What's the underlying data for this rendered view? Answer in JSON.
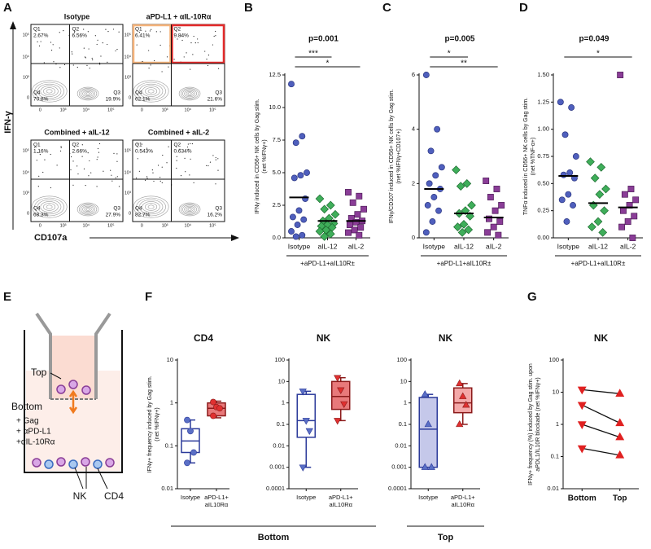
{
  "panel_labels": [
    "A",
    "B",
    "C",
    "D",
    "E",
    "F",
    "G"
  ],
  "flow_cytometry": {
    "y_label": "IFN-γ",
    "x_label": "CD107a",
    "ticks": [
      "0",
      "10³",
      "10⁴",
      "10⁵"
    ],
    "plots": [
      {
        "title": "Isotype",
        "quadrants": [
          {
            "name": "Q1",
            "percent": "2.67%"
          },
          {
            "name": "Q2",
            "percent": "6.56%"
          },
          {
            "name": "Q3",
            "percent": "19.9%"
          },
          {
            "name": "Q4",
            "percent": "70.8%"
          }
        ]
      },
      {
        "title": "aPD-L1 + αIL-10Rα",
        "quadrants": [
          {
            "name": "Q1",
            "percent": "6.41%"
          },
          {
            "name": "Q2",
            "percent": "9.84%"
          },
          {
            "name": "Q3",
            "percent": "21.6%"
          },
          {
            "name": "Q4",
            "percent": "62.1%"
          }
        ]
      },
      {
        "title": "Combined + aIL-12",
        "quadrants": [
          {
            "name": "Q1",
            "percent": "1.16%"
          },
          {
            "name": "Q2",
            "percent": "2.66%"
          },
          {
            "name": "Q3",
            "percent": "27.9%"
          },
          {
            "name": "Q4",
            "percent": "68.3%"
          }
        ]
      },
      {
        "title": "Combined + aIL-2",
        "quadrants": [
          {
            "name": "Q1",
            "percent": "0.543%"
          },
          {
            "name": "Q2",
            "percent": "0.634%"
          },
          {
            "name": "Q3",
            "percent": "16.2%"
          },
          {
            "name": "Q4",
            "percent": "82.7%"
          }
        ]
      }
    ]
  },
  "transwell": {
    "top": "Top",
    "bottom": "Bottom",
    "treatments": [
      "+ Gag",
      "+ αPD-L1",
      "+αIL-10Rα"
    ],
    "cells": [
      "NK",
      "CD4"
    ]
  },
  "figure_f": {
    "groups": [
      "Bottom",
      "Top"
    ]
  },
  "chart_data": [
    {
      "type": "strip",
      "y_label": [
        "IFNγ induced in CD56+ NK cells by Gag stim.",
        "(net %IFNγ+)"
      ],
      "categories": [
        "Isotype",
        "aIL-12",
        "aIL-2"
      ],
      "series": [
        {
          "color": "#4f5fbd",
          "edge_color": "#2a3580",
          "marker": "circle",
          "values": [
            11.8,
            7.8,
            7.3,
            5.0,
            4.8,
            4.6,
            3.0,
            2.1,
            1.6,
            1.4,
            1.0,
            0.5,
            0.2,
            0.1
          ],
          "median": 3.1
        },
        {
          "color": "#3fae5a",
          "edge_color": "#1d6b30",
          "marker": "diamond",
          "values": [
            3.0,
            2.5,
            2.2,
            1.8,
            1.5,
            1.3,
            1.1,
            1.0,
            0.9,
            0.8,
            0.6,
            0.5,
            0.3,
            0.1
          ],
          "median": 1.3
        },
        {
          "color": "#8a3d97",
          "edge_color": "#4d1a57",
          "marker": "square",
          "values": [
            3.5,
            3.2,
            2.7,
            2.2,
            1.8,
            1.5,
            1.3,
            1.2,
            1.0,
            0.8,
            0.6,
            0.4,
            0.2
          ],
          "median": 1.3
        }
      ],
      "ylim": [
        0,
        12.5
      ],
      "yticks": [
        {
          "value": 0,
          "label": "0.0"
        },
        {
          "value": 2.5,
          "label": "2.5"
        },
        {
          "value": 5,
          "label": "5.0"
        },
        {
          "value": 7.5,
          "label": "7.5"
        },
        {
          "value": 10,
          "label": "10.0"
        },
        {
          "value": 12.5,
          "label": "12.5"
        }
      ],
      "p_value": "p=0.001",
      "brackets": [
        {
          "label": "***",
          "categories": [
            "Isotype",
            "aIL-12"
          ]
        },
        {
          "label": "*",
          "categories": [
            "Isotype",
            "aIL-2"
          ]
        }
      ],
      "group_label": "+aPD-L1+aIL10R±"
    },
    {
      "type": "strip",
      "y_label": [
        "IFNγ/CD107 induced in CD56+ NK cells by Gag stim.",
        "(net %IFNγ+CD107+)"
      ],
      "categories": [
        "Isotype",
        "aIL-12",
        "aIL-2"
      ],
      "series": [
        {
          "color": "#4f5fbd",
          "edge_color": "#2a3580",
          "marker": "circle",
          "values": [
            6.0,
            4.0,
            3.2,
            2.6,
            2.3,
            2.0,
            1.8,
            1.5,
            1.2,
            1.0,
            0.6,
            0.2
          ],
          "median": 1.8
        },
        {
          "color": "#3fae5a",
          "edge_color": "#1d6b30",
          "marker": "diamond",
          "values": [
            2.5,
            2.0,
            1.9,
            1.2,
            1.0,
            0.9,
            0.8,
            0.5,
            0.4,
            0.3,
            0.2
          ],
          "median": 0.9
        },
        {
          "color": "#8a3d97",
          "edge_color": "#4d1a57",
          "marker": "square",
          "values": [
            2.1,
            1.8,
            1.5,
            1.2,
            1.0,
            0.7,
            0.6,
            0.4,
            0.2,
            0.1
          ],
          "median": 0.75
        }
      ],
      "ylim": [
        0,
        6
      ],
      "yticks": [
        0,
        2,
        4,
        6
      ],
      "p_value": "p=0.005",
      "brackets": [
        {
          "label": "*",
          "categories": [
            "Isotype",
            "aIL-12"
          ]
        },
        {
          "label": "**",
          "categories": [
            "Isotype",
            "aIL-2"
          ]
        }
      ],
      "group_label": "+aPD-L1+aIL10R±"
    },
    {
      "type": "strip",
      "y_label": [
        "TNFα induced in CD56+ NK cells by Gag stim.",
        "(net %TNF-α+)"
      ],
      "categories": [
        "Isotype",
        "aIL-12",
        "aIL-2"
      ],
      "series": [
        {
          "color": "#4f5fbd",
          "edge_color": "#2a3580",
          "marker": "circle",
          "values": [
            1.25,
            1.2,
            0.95,
            0.75,
            0.6,
            0.58,
            0.55,
            0.4,
            0.35,
            0.3,
            0.15
          ],
          "median": 0.57
        },
        {
          "color": "#3fae5a",
          "edge_color": "#1d6b30",
          "marker": "diamond",
          "values": [
            0.7,
            0.65,
            0.55,
            0.45,
            0.4,
            0.3,
            0.25,
            0.15,
            0.1,
            0.05
          ],
          "median": 0.32
        },
        {
          "color": "#8a3d97",
          "edge_color": "#4d1a57",
          "marker": "square",
          "values": [
            1.5,
            0.45,
            0.4,
            0.35,
            0.3,
            0.25,
            0.2,
            0.15,
            0.1,
            0.0
          ],
          "median": 0.28
        }
      ],
      "ylim": [
        0,
        1.5
      ],
      "yticks": [
        {
          "value": 0,
          "label": "0.00"
        },
        {
          "value": 0.25,
          "label": "0.25"
        },
        {
          "value": 0.5,
          "label": "0.50"
        },
        {
          "value": 0.75,
          "label": "0.75"
        },
        {
          "value": 1,
          "label": "1.00"
        },
        {
          "value": 1.25,
          "label": "1.25"
        },
        {
          "value": 1.5,
          "label": "1.50"
        }
      ],
      "p_value": "p=0.049",
      "brackets": [
        {
          "label": "*",
          "categories": [
            "Isotype",
            "aIL-2"
          ]
        }
      ],
      "group_label": "+aPD-L1+aIL10R±"
    },
    {
      "type": "box",
      "title": "CD4",
      "y_label": [
        "IFNγ+ frequency induced by Gag stim.",
        "(net %IFNγ+)"
      ],
      "log_scale": true,
      "ylim": [
        0.01,
        10
      ],
      "yticks": [
        0.01,
        0.1,
        1,
        10
      ],
      "categories": [
        [
          "Isotype"
        ],
        [
          "aPD-L1+",
          "aIL10Rα"
        ]
      ],
      "series": [
        {
          "color": "#2b3a9a",
          "fill": "#ffffff",
          "point_color": "#5a6fc6",
          "marker": "circle",
          "min": 0.04,
          "q1": 0.07,
          "median": 0.13,
          "q3": 0.25,
          "max": 0.4,
          "points": [
            0.4,
            0.22,
            0.07,
            0.04
          ]
        },
        {
          "color": "#8b1a1a",
          "fill": "#e8797a",
          "point_color": "#e03030",
          "marker": "circle",
          "min": 0.45,
          "q1": 0.5,
          "median": 0.75,
          "q3": 1.0,
          "max": 1.1,
          "points": [
            1.05,
            0.8,
            0.75,
            0.5
          ]
        }
      ]
    },
    {
      "type": "box",
      "title": "NK",
      "log_scale": true,
      "ylim": [
        0.0001,
        100
      ],
      "yticks": [
        0.0001,
        0.001,
        0.01,
        0.1,
        1,
        10,
        100
      ],
      "categories": [
        [
          "Isotype"
        ],
        [
          "aPD-L1+",
          "aIL10Rα"
        ]
      ],
      "series": [
        {
          "color": "#2b3a9a",
          "fill": "#ffffff",
          "point_color": "#5a6fc6",
          "marker": "triangle-down",
          "min": 0.001,
          "q1": 0.025,
          "median": 0.15,
          "q3": 2.5,
          "max": 3.5,
          "points": [
            3.5,
            0.15,
            0.05,
            0.001
          ]
        },
        {
          "color": "#8b1a1a",
          "fill": "#e8797a",
          "point_color": "#e03030",
          "marker": "triangle-down",
          "min": 0.15,
          "q1": 0.5,
          "median": 2,
          "q3": 10,
          "max": 15,
          "points": [
            15,
            4,
            0.9,
            0.15
          ]
        }
      ]
    },
    {
      "type": "box",
      "title": "NK",
      "log_scale": true,
      "ylim": [
        0.0001,
        100
      ],
      "yticks": [
        0.0001,
        0.001,
        0.01,
        0.1,
        1,
        10,
        100
      ],
      "categories": [
        [
          "Isotype"
        ],
        [
          "aPD-L1+",
          "aIL10Rα"
        ]
      ],
      "series": [
        {
          "color": "#2b3a9a",
          "fill": "#c5c8ea",
          "point_color": "#5a6fc6",
          "marker": "triangle-up",
          "min": 0.001,
          "q1": 0.001,
          "median": 0.06,
          "q3": 1.8,
          "max": 2.5,
          "points": [
            2.5,
            0.1,
            0.001,
            0.001
          ]
        },
        {
          "color": "#8b1a1a",
          "fill": "#f4a9a9",
          "point_color": "#e03030",
          "marker": "triangle-up",
          "min": 0.1,
          "q1": 0.35,
          "median": 1,
          "q3": 5,
          "max": 8,
          "points": [
            8,
            2,
            0.8,
            0.1
          ]
        }
      ]
    },
    {
      "type": "line",
      "title": "NK",
      "y_label": [
        "IFNγ+ frequency (%) induced by Gag stim. upon",
        "aPDL1/IL10R blockade (net %IFNγ+)"
      ],
      "log_scale": true,
      "ylim": [
        0.01,
        100
      ],
      "yticks": [
        0.01,
        0.1,
        1,
        10,
        100
      ],
      "categories": [
        "Bottom",
        "Top"
      ],
      "markers": [
        "triangle-down",
        "triangle-up"
      ],
      "series": [
        {
          "color": "#e02020",
          "values": [
            12,
            9
          ]
        },
        {
          "color": "#e02020",
          "values": [
            4,
            1.1
          ]
        },
        {
          "color": "#e02020",
          "values": [
            1,
            0.4
          ]
        },
        {
          "color": "#e02020",
          "values": [
            0.18,
            0.11
          ]
        }
      ]
    }
  ]
}
